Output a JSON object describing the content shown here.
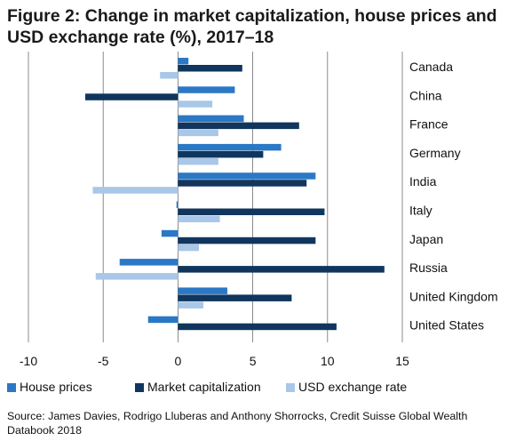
{
  "title": {
    "line1": "Figure 2: Change in market capitalization, house prices and",
    "line2": "USD exchange rate (%), 2017–18"
  },
  "source": {
    "line1": "Source: James Davies, Rodrigo Lluberas and Anthony Shorrocks, Credit Suisse Global Wealth",
    "line2": "Databook 2018"
  },
  "chart_data": {
    "type": "bar",
    "orientation": "horizontal",
    "categories": [
      "Canada",
      "China",
      "France",
      "Germany",
      "India",
      "Italy",
      "Japan",
      "Russia",
      "United Kingdom",
      "United States"
    ],
    "series": [
      {
        "name": "House prices",
        "color": "#2b78c5",
        "values": [
          0.7,
          3.8,
          4.4,
          6.9,
          9.2,
          -0.1,
          -1.1,
          -3.9,
          3.3,
          -2.0
        ]
      },
      {
        "name": "Market capitalization",
        "color": "#10365e",
        "values": [
          4.3,
          -6.2,
          8.1,
          5.7,
          8.6,
          9.8,
          9.2,
          13.8,
          7.6,
          10.6
        ]
      },
      {
        "name": "USD exchange rate",
        "color": "#a9c7e8",
        "values": [
          -1.2,
          2.3,
          2.7,
          2.7,
          -5.7,
          2.8,
          1.4,
          -5.5,
          1.7,
          0.0
        ]
      }
    ],
    "xlim": [
      -10,
      15
    ],
    "xticks": [
      -10,
      -5,
      0,
      5,
      10,
      15
    ],
    "xlabel": "",
    "ylabel": "",
    "grid": "vertical",
    "legend": "bottom"
  }
}
